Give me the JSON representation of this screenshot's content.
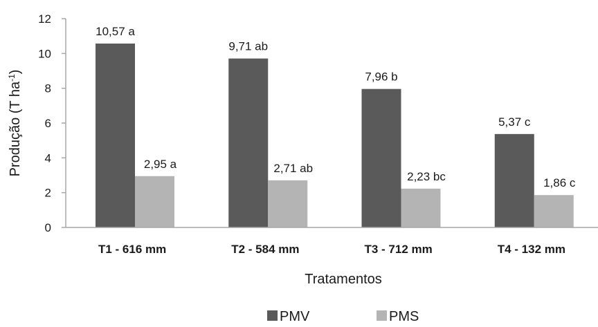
{
  "chart_data": {
    "type": "bar",
    "title": "",
    "xlabel": "Tratamentos",
    "ylabel": "Produção (T ha",
    "ylabel_superscript": "-1",
    "ylabel_suffix": ")",
    "ylim": [
      0,
      12
    ],
    "yticks": [
      "0",
      "2",
      "4",
      "6",
      "8",
      "10",
      "12"
    ],
    "grid": false,
    "legend_position": "bottom",
    "categories": [
      "T1 - 616 mm",
      "T2 - 584 mm",
      "T3 - 712 mm",
      "T4 - 132 mm"
    ],
    "series": [
      {
        "name": "PMV",
        "color": "#5a5a5a",
        "values": [
          10.57,
          9.71,
          7.96,
          5.37
        ],
        "labels": [
          "10,57 a",
          "9,71 ab",
          "7,96 b",
          "5,37 c"
        ]
      },
      {
        "name": "PMS",
        "color": "#b4b4b4",
        "values": [
          2.95,
          2.71,
          2.23,
          1.86
        ],
        "labels": [
          "2,95 a",
          "2,71 ab",
          "2,23 bc",
          "1,86 c"
        ]
      }
    ]
  }
}
